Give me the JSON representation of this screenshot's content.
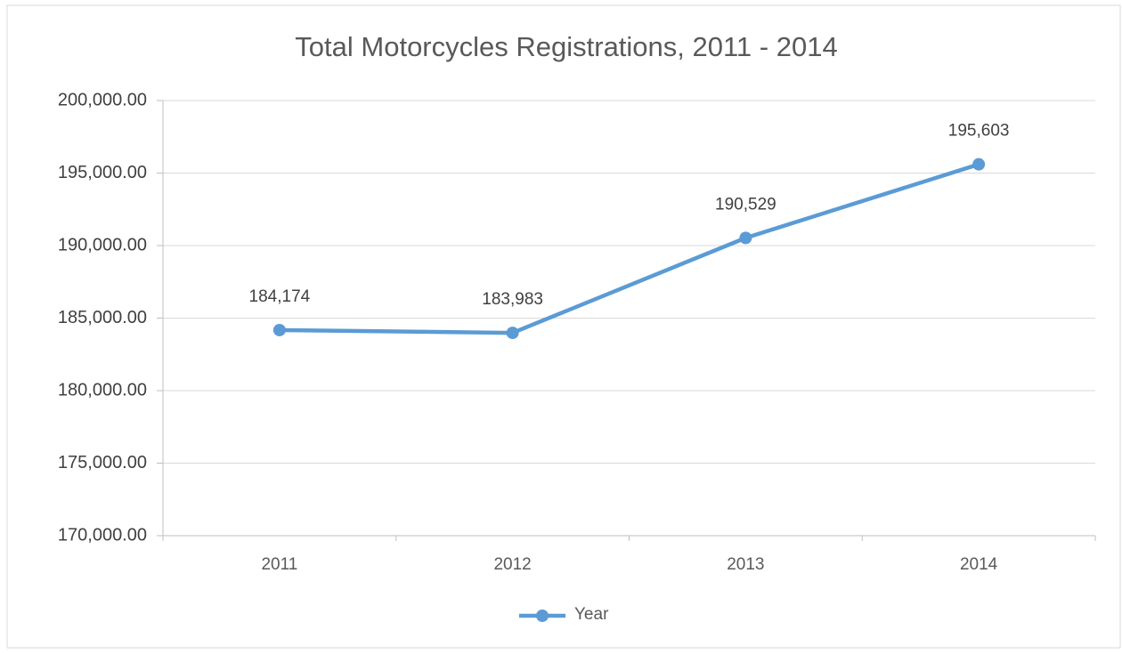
{
  "chart_data": {
    "type": "line",
    "title": "Total Motorcycles Registrations, 2011 - 2014",
    "categories": [
      "2011",
      "2012",
      "2013",
      "2014"
    ],
    "series": [
      {
        "name": "Year",
        "color": "#5b9bd5",
        "values": [
          184174,
          183983,
          190529,
          195603
        ],
        "value_labels": [
          "184,174",
          "183,983",
          "190,529",
          "195,603"
        ]
      }
    ],
    "ylim": [
      170000,
      200000
    ],
    "yticks": [
      {
        "value": 170000,
        "label": "170,000.00"
      },
      {
        "value": 175000,
        "label": "175,000.00"
      },
      {
        "value": 180000,
        "label": "180,000.00"
      },
      {
        "value": 185000,
        "label": "185,000.00"
      },
      {
        "value": 190000,
        "label": "190,000.00"
      },
      {
        "value": 195000,
        "label": "195,000.00"
      },
      {
        "value": 200000,
        "label": "200,000.00"
      }
    ],
    "grid": true,
    "legend": "bottom"
  }
}
